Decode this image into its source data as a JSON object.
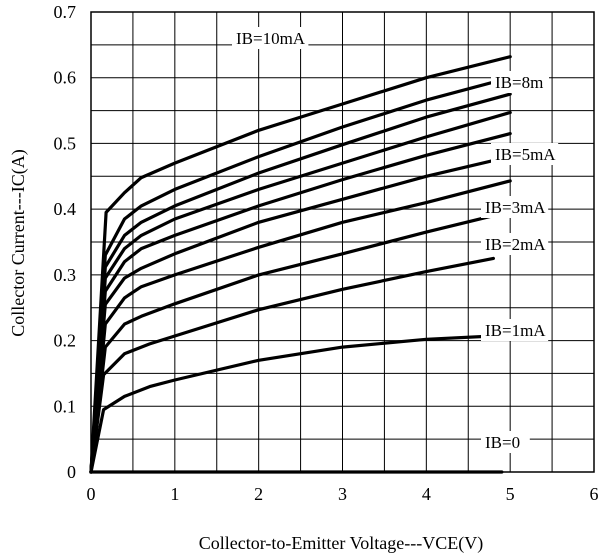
{
  "chart_data": {
    "type": "line",
    "title": "",
    "xlabel": "Collector-to-Emitter Voltage---VCE(V)",
    "ylabel": "Collector Current---IC(A)",
    "xlim": [
      0,
      6
    ],
    "ylim": [
      0,
      0.7
    ],
    "x_ticks": [
      "0",
      "1",
      "2",
      "3",
      "4",
      "5",
      "6"
    ],
    "y_ticks": [
      "0",
      "0.1",
      "0.2",
      "0.3",
      "0.4",
      "0.5",
      "0.6",
      "0.7"
    ],
    "grid": true,
    "series": [
      {
        "name": "IB=0",
        "x": [
          0,
          4.9
        ],
        "y": [
          0,
          0
        ]
      },
      {
        "name": "IB=1mA",
        "x": [
          0,
          0.15,
          0.4,
          0.7,
          1.0,
          2.0,
          3.0,
          4.0,
          4.8
        ],
        "y": [
          0,
          0.095,
          0.115,
          0.13,
          0.14,
          0.17,
          0.19,
          0.202,
          0.207
        ]
      },
      {
        "name": "IB=2mA",
        "x": [
          0,
          0.15,
          0.4,
          0.7,
          1.0,
          2.0,
          3.0,
          4.0,
          4.8
        ],
        "y": [
          0,
          0.148,
          0.18,
          0.195,
          0.207,
          0.247,
          0.278,
          0.305,
          0.325
        ]
      },
      {
        "name": "IB=3mA",
        "x": [
          0,
          0.17,
          0.4,
          0.6,
          1.0,
          2.0,
          3.0,
          4.0,
          4.8
        ],
        "y": [
          0,
          0.19,
          0.225,
          0.237,
          0.256,
          0.3,
          0.332,
          0.365,
          0.39
        ]
      },
      {
        "name": "",
        "x": [
          0,
          0.17,
          0.4,
          0.6,
          1.0,
          2.0,
          3.0,
          4.0,
          5.0
        ],
        "y": [
          0,
          0.225,
          0.265,
          0.282,
          0.3,
          0.342,
          0.38,
          0.41,
          0.443
        ]
      },
      {
        "name": "IB=5mA",
        "x": [
          0,
          0.17,
          0.4,
          0.6,
          1.0,
          2.0,
          3.0,
          4.0,
          5.0
        ],
        "y": [
          0,
          0.255,
          0.295,
          0.31,
          0.332,
          0.38,
          0.415,
          0.45,
          0.48
        ]
      },
      {
        "name": "",
        "x": [
          0,
          0.17,
          0.4,
          0.6,
          1.0,
          2.0,
          3.0,
          4.0,
          5.0
        ],
        "y": [
          0,
          0.275,
          0.32,
          0.34,
          0.36,
          0.405,
          0.445,
          0.482,
          0.515
        ]
      },
      {
        "name": "",
        "x": [
          0,
          0.17,
          0.4,
          0.6,
          1.0,
          2.0,
          3.0,
          4.0,
          5.0
        ],
        "y": [
          0,
          0.295,
          0.34,
          0.36,
          0.385,
          0.43,
          0.47,
          0.51,
          0.547
        ]
      },
      {
        "name": "IB=8m",
        "x": [
          0,
          0.17,
          0.4,
          0.6,
          1.0,
          2.0,
          3.0,
          4.0,
          5.0
        ],
        "y": [
          0,
          0.312,
          0.36,
          0.38,
          0.405,
          0.455,
          0.498,
          0.54,
          0.575
        ]
      },
      {
        "name": "",
        "x": [
          0,
          0.17,
          0.4,
          0.6,
          1.0,
          2.0,
          3.0,
          4.0,
          5.0
        ],
        "y": [
          0,
          0.33,
          0.385,
          0.405,
          0.43,
          0.48,
          0.525,
          0.566,
          0.6
        ]
      },
      {
        "name": "IB=10mA",
        "x": [
          0,
          0.18,
          0.4,
          0.6,
          1.0,
          2.0,
          3.0,
          4.0,
          5.0
        ],
        "y": [
          0,
          0.395,
          0.425,
          0.448,
          0.47,
          0.52,
          0.56,
          0.6,
          0.632
        ]
      }
    ]
  }
}
